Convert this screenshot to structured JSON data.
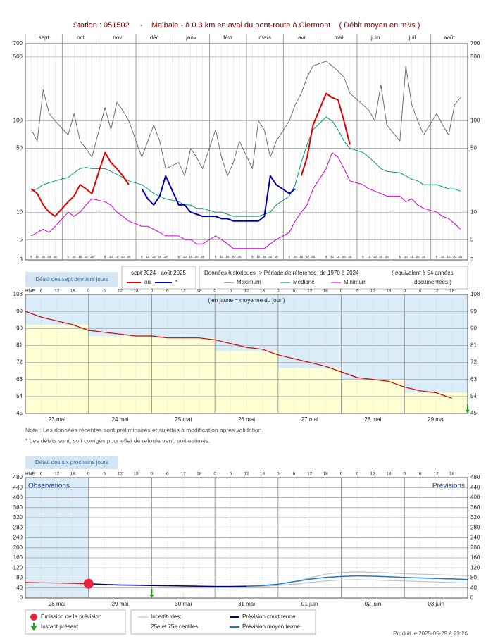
{
  "chart_data": [
    {
      "type": "line",
      "title": "Station : 051502     -    Malbaie - à 0.3 km en aval du pont-route à Clermont    ( Débit moyen en m³/s )",
      "months": [
        "sept",
        "oct",
        "nov",
        "déc",
        "janv",
        "févr",
        "mars",
        "avr",
        "mai",
        "juin",
        "juil",
        "août"
      ],
      "days": [
        5,
        10,
        15,
        20,
        25
      ],
      "log": true,
      "grid": true,
      "ylim": [
        3,
        700
      ],
      "yticks": [
        3,
        5,
        10,
        50,
        100,
        500,
        700
      ],
      "series": [
        {
          "name": "Maximum",
          "color": "#707070",
          "values": [
            80,
            60,
            220,
            120,
            100,
            70,
            120,
            60,
            50,
            40,
            140,
            80,
            160,
            130,
            100,
            40,
            60,
            90,
            60,
            30,
            35,
            25,
            50,
            40,
            30,
            80,
            40,
            25,
            35,
            60,
            30,
            100,
            80,
            40,
            60,
            100,
            150,
            200,
            300,
            400,
            450,
            400,
            350,
            300,
            200,
            150,
            130,
            100,
            250,
            90,
            60,
            400,
            150,
            100,
            70,
            120,
            90,
            70,
            150,
            180
          ]
        },
        {
          "name": "Médiane",
          "color": "#009977",
          "values": [
            17,
            18,
            20,
            21,
            22,
            24,
            27,
            30,
            31,
            30,
            30,
            28,
            26,
            24,
            22,
            20,
            18,
            16,
            15,
            14,
            13,
            12,
            12,
            11,
            11,
            10,
            10,
            9.5,
            9,
            9,
            9,
            9,
            9.5,
            10,
            12,
            15,
            20,
            35,
            55,
            80,
            110,
            100,
            80,
            60,
            50,
            45,
            40,
            35,
            30,
            28,
            27,
            25,
            23,
            22,
            20,
            20,
            19,
            18,
            18,
            17
          ]
        },
        {
          "name": "Minimum",
          "color": "#cc00cc",
          "values": [
            5.5,
            6,
            6.5,
            6,
            7,
            10,
            9,
            10,
            12,
            14,
            13,
            12,
            10,
            9,
            8,
            7,
            7,
            6.5,
            6,
            5.5,
            5.5,
            5,
            5,
            4.5,
            4.5,
            5.5,
            5,
            4.5,
            4,
            4,
            4,
            4,
            4,
            4.5,
            5,
            6,
            8,
            10,
            12,
            18,
            30,
            45,
            40,
            30,
            22,
            20,
            18,
            17,
            16,
            15,
            15,
            13,
            14,
            12,
            11,
            10,
            9,
            8.5,
            7.5,
            6.5
          ]
        },
        {
          "name": "ou",
          "color": "#dd0000",
          "values": [
            18,
            16,
            12,
            10,
            9,
            13,
            15,
            20,
            18,
            16,
            45,
            35,
            30,
            25,
            20,
            null,
            null,
            null,
            null,
            null,
            null,
            null,
            null,
            null,
            null,
            null,
            null,
            null,
            null,
            null,
            null,
            null,
            null,
            null,
            null,
            null,
            null,
            25,
            40,
            90,
            200,
            180,
            170,
            100,
            55,
            null,
            null,
            null,
            null,
            null,
            null,
            null,
            null,
            null,
            null,
            null,
            null,
            null,
            null,
            null
          ]
        },
        {
          "name": "*",
          "color": "#0000aa",
          "values": [
            null,
            null,
            null,
            null,
            null,
            null,
            null,
            null,
            null,
            null,
            null,
            null,
            null,
            null,
            null,
            18,
            14,
            12,
            15,
            25,
            12,
            12,
            10,
            9.5,
            9,
            9,
            8.5,
            8.5,
            8,
            8,
            8,
            8,
            9,
            25,
            20,
            16,
            18,
            null,
            null,
            null,
            null,
            null,
            null,
            null,
            null,
            null,
            null,
            null,
            null,
            null,
            null,
            null,
            null,
            null,
            null,
            null,
            null,
            null,
            null,
            null
          ]
        }
      ],
      "legend": {
        "detail": "Détail des sept derniers jours",
        "period": "sept 2024 - août 2025",
        "historic": "Données historiques -> Période de référence  de 1970 à 2024",
        "equivalent": "( équivalent à 54 années",
        "documented": "documentées )"
      }
    },
    {
      "type": "line",
      "days": [
        "23 mai",
        "24 mai",
        "25 mai",
        "26 mai",
        "27 mai",
        "28 mai",
        "29 mai"
      ],
      "hour_unit": "HNE",
      "hours": [
        0,
        6,
        12,
        18
      ],
      "ylim": [
        45,
        108
      ],
      "yticks": [
        45,
        54,
        63,
        72,
        81,
        90,
        99,
        108
      ],
      "grid": true,
      "color": "#cc0000",
      "values": [
        99,
        96,
        94,
        92,
        89,
        88,
        87,
        86,
        86,
        85,
        85,
        85,
        84,
        82,
        80,
        79,
        76,
        74,
        72,
        70,
        67,
        64,
        63,
        62,
        59,
        57,
        56,
        53
      ],
      "mean_color": "#ffffd4",
      "daily_means": [
        92,
        86,
        85,
        78,
        69,
        62.5,
        56
      ],
      "annotation": "( en jaune = moyenne du jour )",
      "notes": [
        "Note : Les données récentes sont préliminaires et sujettes à modification après validation.",
        "* Les débits sont, soit corrigés pour effet de refoulement, soit estimés."
      ]
    },
    {
      "type": "line",
      "detail": "Détail des six prochains jours",
      "days": [
        "28 mai",
        "29 mai",
        "30 mai",
        "31 mai",
        "01 juin",
        "02 juin",
        "03 juin"
      ],
      "hour_unit": "HNE",
      "hours": [
        0,
        6,
        12,
        18
      ],
      "observations_label": "Observations",
      "forecast_label": "Prévisions",
      "ylim": [
        0,
        480
      ],
      "yticks": [
        0,
        40,
        80,
        120,
        160,
        200,
        240,
        280,
        320,
        360,
        400,
        440,
        480
      ],
      "grid": true,
      "observed": {
        "color": "#cc0000",
        "values": [
          62,
          61,
          60,
          59,
          57,
          null,
          null,
          null,
          null,
          null,
          null,
          null,
          null,
          null,
          null,
          null,
          null,
          null,
          null,
          null,
          null,
          null,
          null,
          null,
          null,
          null,
          null,
          null,
          null
        ]
      },
      "short_term": {
        "name": "Prévision court terme",
        "color": "#00008b",
        "values": [
          null,
          null,
          null,
          null,
          57,
          54,
          52,
          51,
          50,
          49,
          48,
          47,
          46,
          46,
          47,
          null,
          null,
          null,
          null,
          null,
          null,
          null,
          null,
          null,
          null,
          null,
          null,
          null,
          null
        ]
      },
      "medium_term": {
        "name": "Prévision moyen terme",
        "color": "#1e78d0",
        "values": [
          null,
          null,
          null,
          null,
          null,
          null,
          null,
          null,
          null,
          null,
          null,
          null,
          null,
          null,
          47,
          50,
          55,
          65,
          75,
          82,
          86,
          88,
          87,
          85,
          82,
          80,
          78,
          76,
          74
        ]
      },
      "uncertainty": {
        "name": "Incertitudes:",
        "detail": "25e et 75e centiles",
        "color": "#c0c0c0",
        "upper": [
          null,
          null,
          null,
          null,
          57,
          55,
          53,
          52,
          51,
          50,
          49,
          48,
          47,
          47,
          48,
          50,
          55,
          65,
          80,
          95,
          102,
          104,
          103,
          100,
          97,
          95,
          93,
          91,
          89
        ],
        "lower": [
          null,
          null,
          null,
          null,
          57,
          53,
          51,
          50,
          49,
          48,
          47,
          46,
          45,
          45,
          46,
          47,
          50,
          55,
          62,
          68,
          72,
          73,
          72,
          70,
          68,
          66,
          64,
          62,
          60
        ]
      },
      "emission": {
        "name": "Émission de la prévision",
        "color": "#e8203c"
      },
      "present": {
        "name": "Instant présent",
        "color": "#20a020"
      }
    }
  ],
  "footer": "Produit le 2025-05-29 à 23:26"
}
